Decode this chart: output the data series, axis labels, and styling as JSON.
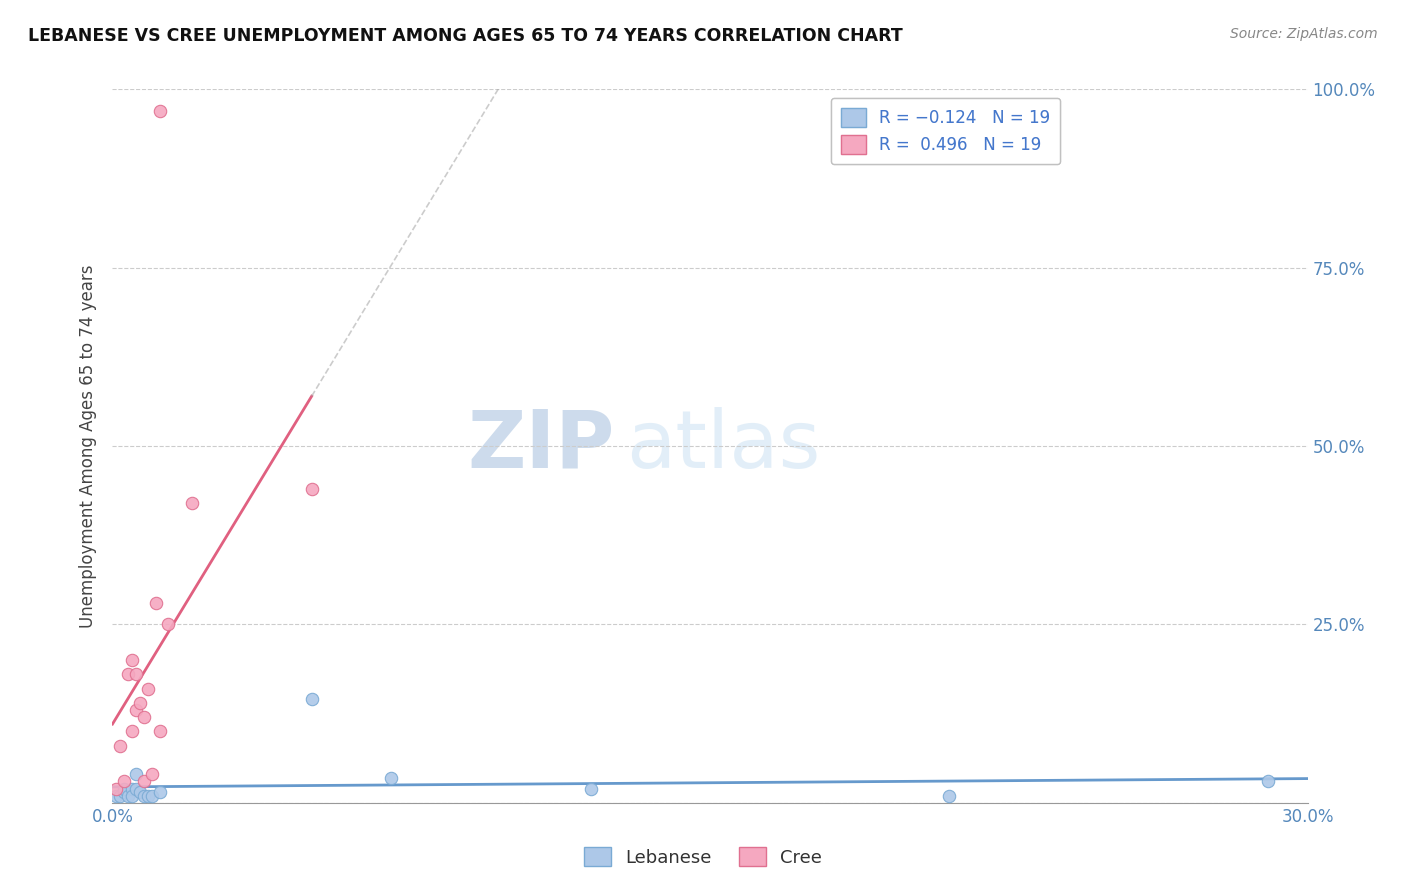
{
  "title": "LEBANESE VS CREE UNEMPLOYMENT AMONG AGES 65 TO 74 YEARS CORRELATION CHART",
  "source": "Source: ZipAtlas.com",
  "ylabel": "Unemployment Among Ages 65 to 74 years",
  "xlim": [
    0.0,
    0.3
  ],
  "ylim": [
    0.0,
    1.0
  ],
  "xticks": [
    0.0,
    0.05,
    0.1,
    0.15,
    0.2,
    0.25,
    0.3
  ],
  "yticks": [
    0.0,
    0.25,
    0.5,
    0.75,
    1.0
  ],
  "xtick_labels_left": [
    "0.0%",
    "",
    "",
    "",
    "",
    "",
    ""
  ],
  "xtick_labels_right": [
    "",
    "",
    "",
    "",
    "",
    "",
    "30.0%"
  ],
  "ytick_labels": [
    "",
    "25.0%",
    "50.0%",
    "75.0%",
    "100.0%"
  ],
  "lebanese_color": "#adc8e8",
  "cree_color": "#f5a8c0",
  "lebanese_edge": "#7aaad4",
  "cree_edge": "#e07090",
  "trendline_lebanese": "#6699cc",
  "trendline_cree": "#e06080",
  "trendline_lebanese_dashed": "#aaaaaa",
  "R_lebanese": -0.124,
  "N_lebanese": 19,
  "R_cree": 0.496,
  "N_cree": 19,
  "legend_label_lebanese": "Lebanese",
  "legend_label_cree": "Cree",
  "watermark_zip": "ZIP",
  "watermark_atlas": "atlas",
  "lebanese_x": [
    0.001,
    0.002,
    0.003,
    0.003,
    0.004,
    0.005,
    0.005,
    0.006,
    0.006,
    0.007,
    0.008,
    0.009,
    0.01,
    0.012,
    0.05,
    0.07,
    0.12,
    0.21,
    0.29
  ],
  "lebanese_y": [
    0.01,
    0.01,
    0.015,
    0.02,
    0.01,
    0.02,
    0.01,
    0.02,
    0.04,
    0.015,
    0.01,
    0.01,
    0.01,
    0.015,
    0.145,
    0.035,
    0.02,
    0.01,
    0.03
  ],
  "cree_x": [
    0.001,
    0.002,
    0.003,
    0.004,
    0.005,
    0.005,
    0.006,
    0.006,
    0.007,
    0.008,
    0.008,
    0.009,
    0.01,
    0.011,
    0.012,
    0.014,
    0.02,
    0.05,
    0.012
  ],
  "cree_y": [
    0.02,
    0.08,
    0.03,
    0.18,
    0.1,
    0.2,
    0.13,
    0.18,
    0.14,
    0.03,
    0.12,
    0.16,
    0.04,
    0.28,
    0.1,
    0.25,
    0.42,
    0.44,
    0.97
  ]
}
